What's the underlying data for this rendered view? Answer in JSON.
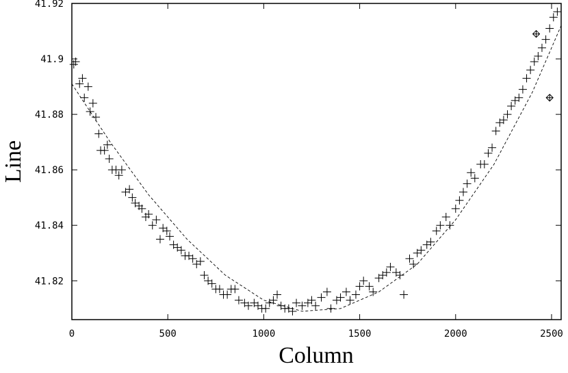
{
  "chart_data": {
    "type": "scatter",
    "x_label": "Column",
    "y_label": "Line",
    "xlim": [
      0,
      2550
    ],
    "ylim": [
      41.806,
      41.92
    ],
    "xticks": [
      0,
      500,
      1000,
      1500,
      2000,
      2500
    ],
    "yticks": [
      41.82,
      41.84,
      41.86,
      41.88,
      41.9,
      41.92
    ],
    "series": [
      {
        "marker": "plus",
        "color": "#000000",
        "x": [
          10,
          20,
          40,
          55,
          65,
          85,
          95,
          110,
          125,
          140,
          150,
          170,
          185,
          195,
          210,
          230,
          245,
          260,
          280,
          300,
          315,
          330,
          350,
          365,
          385,
          400,
          420,
          440,
          460,
          475,
          495,
          510,
          530,
          550,
          570,
          590,
          610,
          630,
          650,
          670,
          690,
          710,
          730,
          750,
          770,
          790,
          810,
          830,
          850,
          870,
          900,
          920,
          950,
          970,
          990,
          1010,
          1030,
          1050,
          1070,
          1090,
          1110,
          1130,
          1150,
          1170,
          1200,
          1230,
          1250,
          1270,
          1300,
          1330,
          1350,
          1380,
          1400,
          1430,
          1450,
          1480,
          1500,
          1520,
          1550,
          1570,
          1600,
          1620,
          1640,
          1660,
          1690,
          1710,
          1730,
          1760,
          1780,
          1800,
          1820,
          1850,
          1870,
          1900,
          1920,
          1950,
          1970,
          2000,
          2020,
          2040,
          2060,
          2080,
          2100,
          2130,
          2150,
          2170,
          2190,
          2210,
          2230,
          2250,
          2270,
          2290,
          2310,
          2330,
          2350,
          2370,
          2390,
          2410,
          2430,
          2450,
          2470,
          2490,
          2510,
          2530
        ],
        "values": [
          41.898,
          41.899,
          41.891,
          41.893,
          41.886,
          41.89,
          41.881,
          41.884,
          41.879,
          41.873,
          41.867,
          41.867,
          41.869,
          41.864,
          41.86,
          41.86,
          41.858,
          41.86,
          41.852,
          41.853,
          41.85,
          41.848,
          41.847,
          41.846,
          41.843,
          41.844,
          41.84,
          41.842,
          41.835,
          41.839,
          41.838,
          41.836,
          41.833,
          41.832,
          41.831,
          41.829,
          41.829,
          41.828,
          41.826,
          41.827,
          41.822,
          41.82,
          41.819,
          41.817,
          41.817,
          41.815,
          41.815,
          41.817,
          41.817,
          41.813,
          41.812,
          41.811,
          41.812,
          41.811,
          41.81,
          41.81,
          41.812,
          41.813,
          41.815,
          41.811,
          41.81,
          41.81,
          41.809,
          41.812,
          41.811,
          41.812,
          41.813,
          41.811,
          41.814,
          41.816,
          41.81,
          41.813,
          41.814,
          41.816,
          41.813,
          41.815,
          41.818,
          41.82,
          41.818,
          41.816,
          41.821,
          41.822,
          41.823,
          41.825,
          41.823,
          41.822,
          41.815,
          41.828,
          41.826,
          41.83,
          41.831,
          41.833,
          41.834,
          41.838,
          41.84,
          41.843,
          41.84,
          41.846,
          41.849,
          41.852,
          41.855,
          41.859,
          41.857,
          41.862,
          41.862,
          41.866,
          41.868,
          41.874,
          41.877,
          41.878,
          41.88,
          41.883,
          41.885,
          41.886,
          41.889,
          41.893,
          41.896,
          41.899,
          41.901,
          41.904,
          41.907,
          41.911,
          41.915,
          41.917
        ]
      },
      {
        "marker": "diamond",
        "color": "#000000",
        "x": [
          2420,
          2490
        ],
        "values": [
          41.909,
          41.886
        ]
      },
      {
        "marker": "dashed-line",
        "color": "#000000",
        "x": [
          0,
          200,
          400,
          600,
          800,
          1000,
          1200,
          1400,
          1600,
          1800,
          2000,
          2200,
          2400,
          2550
        ],
        "values": [
          41.891,
          41.87,
          41.851,
          41.835,
          41.822,
          41.813,
          41.809,
          41.81,
          41.816,
          41.826,
          41.842,
          41.862,
          41.888,
          41.912
        ]
      }
    ]
  }
}
